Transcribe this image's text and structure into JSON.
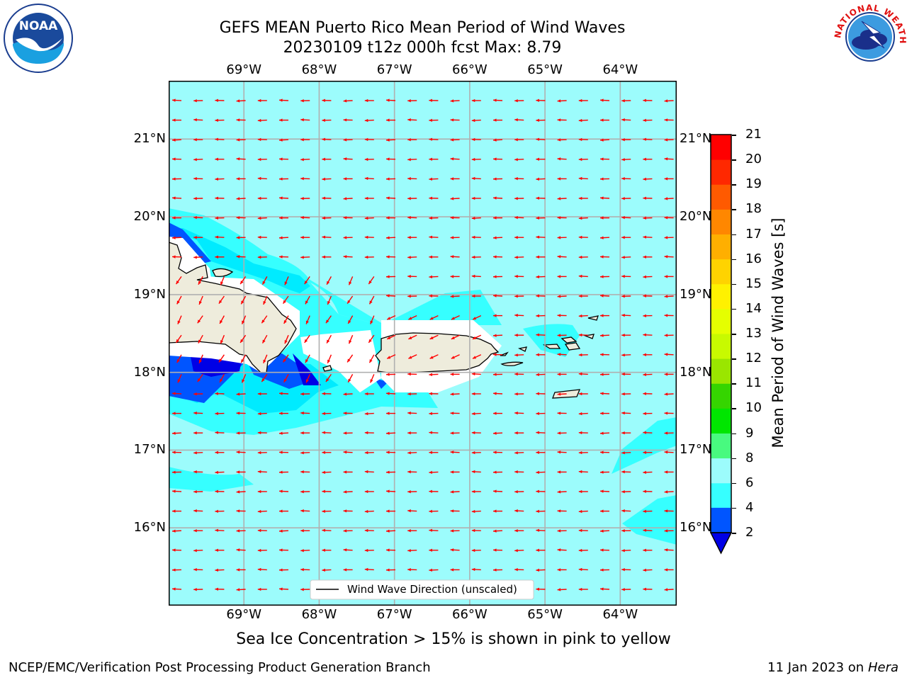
{
  "header": {
    "title_line1": "GEFS MEAN Puerto Rico Mean Period of Wind Waves",
    "title_line2": "20230109 t12z 000h fcst   Max: 8.79"
  },
  "logos": {
    "left": {
      "icon": "noaa-logo-icon",
      "text": "NOAA"
    },
    "right": {
      "icon": "nws-logo-icon",
      "text": "NATIONAL WEATHER SERVICE"
    }
  },
  "map": {
    "lon_labels": [
      "69°W",
      "68°W",
      "67°W",
      "66°W",
      "65°W",
      "64°W"
    ],
    "lat_labels": [
      "21°N",
      "20°N",
      "19°N",
      "18°N",
      "17°N",
      "16°N"
    ],
    "lon_values": [
      -69,
      -68,
      -67,
      -66,
      -65,
      -64
    ],
    "lat_values": [
      21,
      20,
      19,
      18,
      17,
      16
    ],
    "lon_range": [
      -70,
      -63.25
    ],
    "lat_range": [
      15,
      21.75
    ],
    "vector_color": "#ff0000",
    "land_color": "#eeecdc",
    "sea_color": "#9cfcfc",
    "legend_label": "Wind Wave Direction (unscaled)"
  },
  "colorbar": {
    "label": "Mean Period of Wind Waves [s]",
    "tick_labels": [
      "2",
      "4",
      "6",
      "8",
      "9",
      "10",
      "11",
      "12",
      "13",
      "14",
      "15",
      "16",
      "17",
      "18",
      "19",
      "20",
      "21"
    ],
    "colors": [
      "#0055ff",
      "#00ebff",
      "#36ffff",
      "#9cfcfc",
      "#48fa7f",
      "#00e600",
      "#35d500",
      "#9ae600",
      "#c8fa00",
      "#e5ff00",
      "#fff100",
      "#ffd300",
      "#ffaf00",
      "#ff8700",
      "#ff5a00",
      "#ff2800",
      "#ff0000"
    ],
    "extend_color": "#0000e6"
  },
  "notes": {
    "sea_ice": "Sea Ice Concentration > 15% is shown in pink to yellow"
  },
  "footer": {
    "left": "NCEP/EMC/Verification Post Processing Product Generation Branch",
    "right_prefix": "11 Jan 2023 on ",
    "right_host": "Hera"
  }
}
